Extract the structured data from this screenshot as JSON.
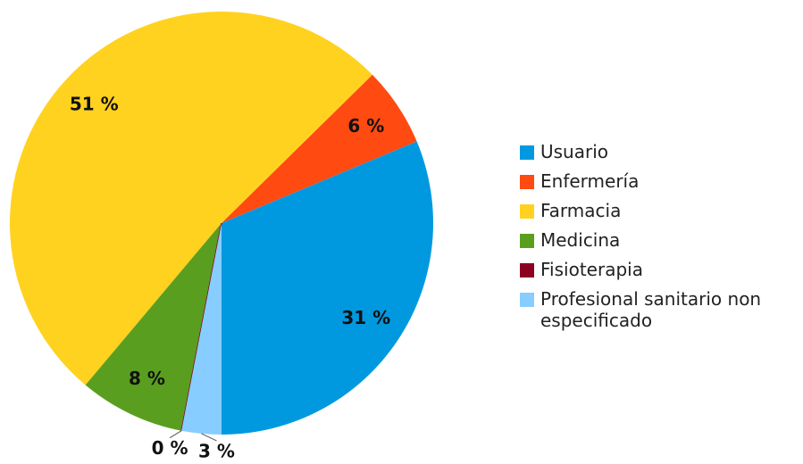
{
  "chart_data": {
    "type": "pie",
    "categories": [
      "Usuario",
      "Enfermería",
      "Farmacia",
      "Medicina",
      "Fisioterapia",
      "Profesional sanitario non especificado"
    ],
    "values": [
      31,
      6,
      51,
      8,
      0,
      3
    ],
    "value_labels": [
      "31 %",
      "6 %",
      "51 %",
      "8 %",
      "0 %",
      "3 %"
    ],
    "colors": [
      "#0099e0",
      "#ff4a12",
      "#ffd21f",
      "#5a9e1f",
      "#8b0021",
      "#87cdff"
    ],
    "legend": "right"
  }
}
